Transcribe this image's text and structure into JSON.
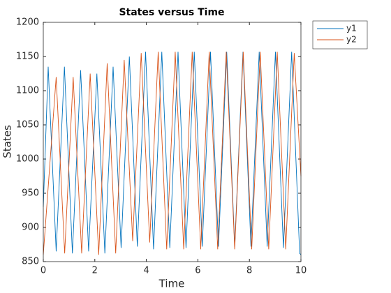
{
  "chart_data": {
    "type": "line",
    "title": "States versus Time",
    "x_label": "Time",
    "y_label": "States",
    "xlim": [
      0,
      10
    ],
    "xticks": [
      0,
      2,
      4,
      6,
      8,
      10
    ],
    "ylim": [
      850,
      1200
    ],
    "yticks": [
      850,
      900,
      950,
      1000,
      1050,
      1100,
      1150,
      1200
    ],
    "legend": "outside-top-right",
    "series": [
      {
        "name": "y1",
        "color": "#0072bd",
        "x": [
          0,
          0.19,
          0.5,
          0.82,
          1.13,
          1.45,
          1.76,
          2.08,
          2.39,
          2.71,
          3.02,
          3.34,
          3.65,
          3.97,
          4.28,
          4.6,
          4.91,
          5.23,
          5.54,
          5.86,
          6.17,
          6.49,
          6.8,
          7.12,
          7.43,
          7.75,
          8.06,
          8.38,
          8.69,
          9.01,
          9.32,
          9.64,
          9.95,
          10
        ],
        "values": [
          930,
          1135,
          865,
          1135,
          862,
          1130,
          865,
          1125,
          862,
          1135,
          870,
          1150,
          872,
          1157,
          868,
          1157,
          870,
          1157,
          870,
          1157,
          872,
          1157,
          872,
          1157,
          872,
          1157,
          872,
          1157,
          872,
          1157,
          870,
          1157,
          862,
          860
        ]
      },
      {
        "name": "y2",
        "color": "#d95319",
        "x": [
          0,
          0.5,
          0.83,
          1.16,
          1.49,
          1.82,
          2.15,
          2.48,
          2.81,
          3.14,
          3.47,
          3.8,
          4.13,
          4.46,
          4.79,
          5.12,
          5.45,
          5.78,
          6.11,
          6.44,
          6.77,
          7.1,
          7.43,
          7.76,
          8.09,
          8.42,
          8.75,
          9.08,
          9.41,
          9.74,
          10
        ],
        "values": [
          860,
          1120,
          862,
          1120,
          862,
          1125,
          860,
          1140,
          862,
          1145,
          880,
          1155,
          878,
          1157,
          868,
          1157,
          868,
          1157,
          868,
          1157,
          868,
          1157,
          868,
          1157,
          868,
          1157,
          868,
          1157,
          868,
          1155,
          975
        ]
      }
    ]
  }
}
